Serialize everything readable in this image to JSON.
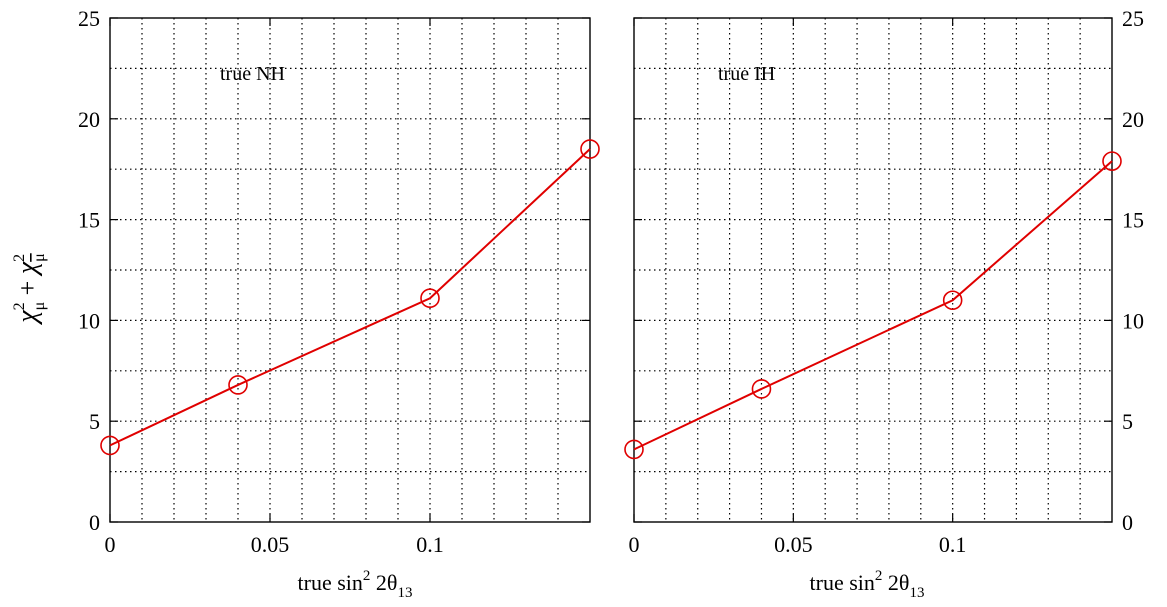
{
  "chart_data": [
    {
      "type": "line",
      "panel_label": "true NH",
      "x": [
        0,
        0.04,
        0.1,
        0.15
      ],
      "series": [
        {
          "values": [
            3.8,
            6.8,
            11.1,
            18.5
          ],
          "color": "#e00000",
          "marker": "open-circle"
        }
      ],
      "xlim": [
        0,
        0.15
      ],
      "ylim": [
        0,
        25
      ],
      "xticks": [
        "0",
        "0.05",
        "0.1"
      ],
      "yticks": [
        "0",
        "5",
        "10",
        "15",
        "20",
        "25"
      ],
      "y_tick_side": "left",
      "grid": true,
      "xlabel": {
        "text": "true sin",
        "sup": "2",
        "mid": " 2θ",
        "sub": "13"
      },
      "ylabel": "χ²μ + χ²μ̄"
    },
    {
      "type": "line",
      "panel_label": "true IH",
      "x": [
        0,
        0.04,
        0.1,
        0.15
      ],
      "series": [
        {
          "values": [
            3.6,
            6.6,
            11.0,
            17.9
          ],
          "color": "#e00000",
          "marker": "open-circle"
        }
      ],
      "xlim": [
        0,
        0.15
      ],
      "ylim": [
        0,
        25
      ],
      "xticks": [
        "0",
        "0.05",
        "0.1"
      ],
      "yticks": [
        "0",
        "5",
        "10",
        "15",
        "20",
        "25"
      ],
      "y_tick_side": "right",
      "grid": true,
      "xlabel": {
        "text": "true sin",
        "sup": "2",
        "mid": " 2θ",
        "sub": "13"
      }
    }
  ]
}
